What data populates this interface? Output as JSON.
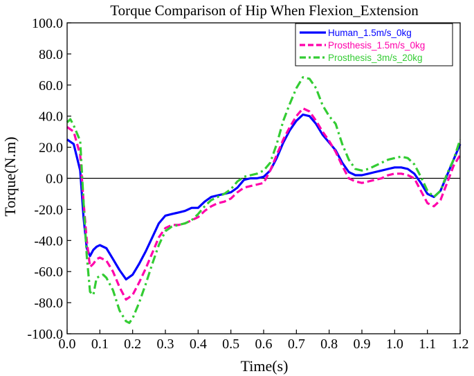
{
  "chart_data": {
    "type": "line",
    "title": "Torque Comparison of Hip When Flexion_Extension",
    "xlabel": "Time(s)",
    "ylabel": "Torque(N.m)",
    "xlim": [
      0.0,
      1.2
    ],
    "ylim": [
      -100.0,
      100.0
    ],
    "x_ticks": [
      "0.0",
      "0.1",
      "0.2",
      "0.3",
      "0.4",
      "0.5",
      "0.6",
      "0.7",
      "0.8",
      "0.9",
      "1.0",
      "1.1",
      "1.2"
    ],
    "y_ticks": [
      "100.0",
      "80.0",
      "60.0",
      "40.0",
      "20.0",
      "0.0",
      "-20.0",
      "-40.0",
      "-60.0",
      "-80.0",
      "-100.0"
    ],
    "grid": false,
    "zero_line": true,
    "legend_position": "top-right",
    "series": [
      {
        "name": "Human_1.5m/s_0kg",
        "color": "#0000ff",
        "style": "solid",
        "points": [
          [
            0.0,
            25
          ],
          [
            0.02,
            22
          ],
          [
            0.04,
            5
          ],
          [
            0.05,
            -25
          ],
          [
            0.06,
            -45
          ],
          [
            0.07,
            -50
          ],
          [
            0.08,
            -46
          ],
          [
            0.09,
            -44
          ],
          [
            0.1,
            -43
          ],
          [
            0.12,
            -45
          ],
          [
            0.14,
            -52
          ],
          [
            0.16,
            -59
          ],
          [
            0.18,
            -65
          ],
          [
            0.2,
            -62
          ],
          [
            0.22,
            -55
          ],
          [
            0.24,
            -47
          ],
          [
            0.26,
            -38
          ],
          [
            0.28,
            -29
          ],
          [
            0.3,
            -24
          ],
          [
            0.32,
            -23
          ],
          [
            0.34,
            -22
          ],
          [
            0.36,
            -21
          ],
          [
            0.38,
            -19
          ],
          [
            0.4,
            -19
          ],
          [
            0.42,
            -15
          ],
          [
            0.44,
            -12
          ],
          [
            0.46,
            -11
          ],
          [
            0.48,
            -10
          ],
          [
            0.5,
            -9
          ],
          [
            0.52,
            -6
          ],
          [
            0.54,
            -1
          ],
          [
            0.56,
            0
          ],
          [
            0.58,
            0
          ],
          [
            0.6,
            1
          ],
          [
            0.62,
            5
          ],
          [
            0.64,
            13
          ],
          [
            0.66,
            23
          ],
          [
            0.68,
            31
          ],
          [
            0.7,
            37
          ],
          [
            0.72,
            41
          ],
          [
            0.74,
            40
          ],
          [
            0.76,
            35
          ],
          [
            0.78,
            28
          ],
          [
            0.8,
            23
          ],
          [
            0.82,
            18
          ],
          [
            0.84,
            10
          ],
          [
            0.86,
            4
          ],
          [
            0.88,
            2
          ],
          [
            0.9,
            2
          ],
          [
            0.92,
            3
          ],
          [
            0.94,
            4
          ],
          [
            0.96,
            5
          ],
          [
            0.98,
            6
          ],
          [
            1.0,
            7
          ],
          [
            1.02,
            7
          ],
          [
            1.04,
            6
          ],
          [
            1.06,
            3
          ],
          [
            1.08,
            -3
          ],
          [
            1.1,
            -10
          ],
          [
            1.12,
            -12
          ],
          [
            1.14,
            -8
          ],
          [
            1.16,
            2
          ],
          [
            1.18,
            12
          ],
          [
            1.2,
            22
          ]
        ]
      },
      {
        "name": "Prosthesis_1.5m/s_0kg",
        "color": "#ff00aa",
        "style": "dashed",
        "points": [
          [
            0.0,
            33
          ],
          [
            0.02,
            30
          ],
          [
            0.04,
            15
          ],
          [
            0.05,
            -15
          ],
          [
            0.06,
            -40
          ],
          [
            0.07,
            -57
          ],
          [
            0.08,
            -55
          ],
          [
            0.09,
            -52
          ],
          [
            0.1,
            -51
          ],
          [
            0.12,
            -53
          ],
          [
            0.14,
            -60
          ],
          [
            0.16,
            -70
          ],
          [
            0.18,
            -78
          ],
          [
            0.2,
            -75
          ],
          [
            0.22,
            -67
          ],
          [
            0.24,
            -58
          ],
          [
            0.26,
            -48
          ],
          [
            0.28,
            -38
          ],
          [
            0.3,
            -32
          ],
          [
            0.32,
            -30
          ],
          [
            0.34,
            -30
          ],
          [
            0.36,
            -29
          ],
          [
            0.38,
            -27
          ],
          [
            0.4,
            -25
          ],
          [
            0.42,
            -21
          ],
          [
            0.44,
            -18
          ],
          [
            0.46,
            -16
          ],
          [
            0.48,
            -15
          ],
          [
            0.5,
            -13
          ],
          [
            0.52,
            -9
          ],
          [
            0.54,
            -6
          ],
          [
            0.56,
            -5
          ],
          [
            0.58,
            -4
          ],
          [
            0.6,
            -3
          ],
          [
            0.62,
            5
          ],
          [
            0.64,
            15
          ],
          [
            0.66,
            25
          ],
          [
            0.68,
            33
          ],
          [
            0.7,
            40
          ],
          [
            0.72,
            45
          ],
          [
            0.74,
            43
          ],
          [
            0.76,
            37
          ],
          [
            0.78,
            30
          ],
          [
            0.8,
            24
          ],
          [
            0.82,
            17
          ],
          [
            0.84,
            8
          ],
          [
            0.86,
            0
          ],
          [
            0.88,
            -2
          ],
          [
            0.9,
            -3
          ],
          [
            0.92,
            -2
          ],
          [
            0.94,
            -1
          ],
          [
            0.96,
            0
          ],
          [
            0.98,
            2
          ],
          [
            1.0,
            3
          ],
          [
            1.02,
            3
          ],
          [
            1.04,
            2
          ],
          [
            1.06,
            0
          ],
          [
            1.08,
            -8
          ],
          [
            1.1,
            -16
          ],
          [
            1.12,
            -18
          ],
          [
            1.14,
            -14
          ],
          [
            1.16,
            -3
          ],
          [
            1.18,
            8
          ],
          [
            1.2,
            15
          ]
        ]
      },
      {
        "name": "Prosthesis_3m/s_20kg",
        "color": "#33cc33",
        "style": "dashdot",
        "points": [
          [
            0.0,
            36
          ],
          [
            0.01,
            38
          ],
          [
            0.02,
            34
          ],
          [
            0.04,
            24
          ],
          [
            0.05,
            -15
          ],
          [
            0.06,
            -50
          ],
          [
            0.07,
            -73
          ],
          [
            0.08,
            -75
          ],
          [
            0.09,
            -64
          ],
          [
            0.1,
            -63
          ],
          [
            0.11,
            -62
          ],
          [
            0.12,
            -64
          ],
          [
            0.14,
            -72
          ],
          [
            0.16,
            -85
          ],
          [
            0.18,
            -92
          ],
          [
            0.19,
            -93
          ],
          [
            0.2,
            -90
          ],
          [
            0.22,
            -80
          ],
          [
            0.24,
            -68
          ],
          [
            0.26,
            -55
          ],
          [
            0.28,
            -43
          ],
          [
            0.3,
            -34
          ],
          [
            0.32,
            -31
          ],
          [
            0.34,
            -30
          ],
          [
            0.36,
            -29
          ],
          [
            0.38,
            -27
          ],
          [
            0.4,
            -23
          ],
          [
            0.42,
            -18
          ],
          [
            0.44,
            -14
          ],
          [
            0.46,
            -12
          ],
          [
            0.48,
            -10
          ],
          [
            0.5,
            -7
          ],
          [
            0.52,
            -2
          ],
          [
            0.54,
            1
          ],
          [
            0.56,
            2
          ],
          [
            0.58,
            3
          ],
          [
            0.6,
            5
          ],
          [
            0.62,
            10
          ],
          [
            0.64,
            22
          ],
          [
            0.66,
            37
          ],
          [
            0.68,
            48
          ],
          [
            0.7,
            58
          ],
          [
            0.72,
            65
          ],
          [
            0.74,
            64
          ],
          [
            0.76,
            58
          ],
          [
            0.78,
            47
          ],
          [
            0.8,
            40
          ],
          [
            0.82,
            35
          ],
          [
            0.84,
            22
          ],
          [
            0.86,
            12
          ],
          [
            0.88,
            6
          ],
          [
            0.9,
            5
          ],
          [
            0.92,
            6
          ],
          [
            0.94,
            8
          ],
          [
            0.96,
            10
          ],
          [
            0.98,
            12
          ],
          [
            1.0,
            13
          ],
          [
            1.02,
            14
          ],
          [
            1.04,
            13
          ],
          [
            1.06,
            9
          ],
          [
            1.08,
            1
          ],
          [
            1.1,
            -8
          ],
          [
            1.12,
            -12
          ],
          [
            1.14,
            -8
          ],
          [
            1.16,
            3
          ],
          [
            1.18,
            12
          ],
          [
            1.2,
            25
          ]
        ]
      }
    ]
  }
}
